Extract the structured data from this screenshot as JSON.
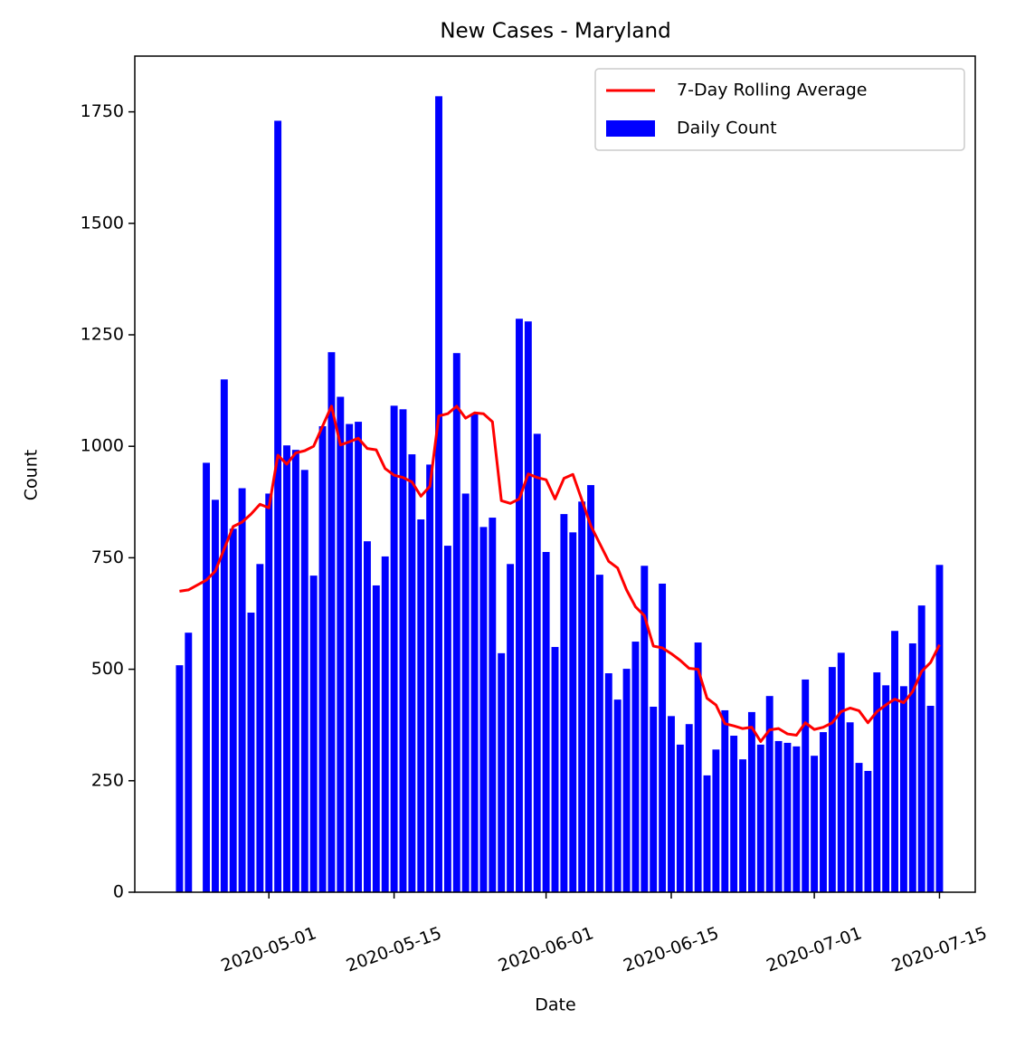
{
  "chart_data": {
    "type": "bar",
    "title": "New Cases - Maryland",
    "xlabel": "Date",
    "ylabel": "Count",
    "x": [
      "2020-04-21",
      "2020-04-22",
      "2020-04-24",
      "2020-04-25",
      "2020-04-26",
      "2020-04-27",
      "2020-04-28",
      "2020-04-29",
      "2020-04-30",
      "2020-05-01",
      "2020-05-02",
      "2020-05-03",
      "2020-05-04",
      "2020-05-05",
      "2020-05-06",
      "2020-05-07",
      "2020-05-08",
      "2020-05-09",
      "2020-05-10",
      "2020-05-11",
      "2020-05-12",
      "2020-05-13",
      "2020-05-14",
      "2020-05-15",
      "2020-05-16",
      "2020-05-17",
      "2020-05-18",
      "2020-05-19",
      "2020-05-20",
      "2020-05-21",
      "2020-05-22",
      "2020-05-23",
      "2020-05-24",
      "2020-05-25",
      "2020-05-26",
      "2020-05-27",
      "2020-05-28",
      "2020-05-29",
      "2020-05-30",
      "2020-05-31",
      "2020-06-01",
      "2020-06-02",
      "2020-06-03",
      "2020-06-04",
      "2020-06-05",
      "2020-06-06",
      "2020-06-07",
      "2020-06-08",
      "2020-06-09",
      "2020-06-10",
      "2020-06-11",
      "2020-06-12",
      "2020-06-13",
      "2020-06-14",
      "2020-06-15",
      "2020-06-16",
      "2020-06-17",
      "2020-06-18",
      "2020-06-19",
      "2020-06-20",
      "2020-06-21",
      "2020-06-22",
      "2020-06-23",
      "2020-06-24",
      "2020-06-25",
      "2020-06-26",
      "2020-06-27",
      "2020-06-28",
      "2020-06-29",
      "2020-06-30",
      "2020-07-01",
      "2020-07-02",
      "2020-07-03",
      "2020-07-04",
      "2020-07-05",
      "2020-07-06",
      "2020-07-07",
      "2020-07-08",
      "2020-07-09",
      "2020-07-10",
      "2020-07-11",
      "2020-07-12",
      "2020-07-13",
      "2020-07-14",
      "2020-07-15"
    ],
    "series": [
      {
        "name": "7-Day Rolling Average",
        "type": "line",
        "color": "#ff0000",
        "values": [
          675,
          678,
          700,
          720,
          770,
          820,
          830,
          848,
          870,
          862,
          980,
          960,
          985,
          990,
          1000,
          1045,
          1090,
          1003,
          1010,
          1018,
          995,
          992,
          950,
          935,
          930,
          920,
          888,
          910,
          1068,
          1073,
          1090,
          1063,
          1075,
          1073,
          1055,
          878,
          872,
          882,
          938,
          930,
          925,
          882,
          928,
          937,
          880,
          822,
          782,
          742,
          727,
          678,
          640,
          620,
          552,
          548,
          535,
          520,
          502,
          500,
          435,
          420,
          378,
          373,
          367,
          370,
          338,
          364,
          367,
          355,
          352,
          380,
          365,
          370,
          380,
          405,
          413,
          407,
          380,
          405,
          420,
          433,
          425,
          450,
          495,
          515,
          555
        ]
      },
      {
        "name": "Daily Count",
        "type": "bar",
        "color": "#0000ff",
        "values": [
          509,
          582,
          963,
          880,
          1150,
          815,
          906,
          627,
          736,
          894,
          1730,
          1002,
          992,
          947,
          710,
          1045,
          1211,
          1111,
          1050,
          1055,
          787,
          688,
          753,
          1091,
          1083,
          982,
          836,
          959,
          1785,
          777,
          1209,
          894,
          1073,
          819,
          840,
          536,
          736,
          1286,
          1280,
          1028,
          763,
          550,
          848,
          807,
          876,
          913,
          712,
          491,
          432,
          501,
          562,
          732,
          416,
          692,
          395,
          331,
          377,
          560,
          262,
          320,
          408,
          351,
          298,
          404,
          331,
          440,
          339,
          335,
          327,
          477,
          306,
          359,
          505,
          537,
          381,
          290,
          272,
          493,
          464,
          586,
          462,
          558,
          643,
          418,
          734
        ]
      }
    ],
    "xlim": [
      "2020-04-16",
      "2020-07-19"
    ],
    "xticks": [
      "2020-05-01",
      "2020-05-15",
      "2020-06-01",
      "2020-06-15",
      "2020-07-01",
      "2020-07-15"
    ],
    "ylim": [
      0,
      1875
    ],
    "yticks": [
      0,
      250,
      500,
      750,
      1000,
      1250,
      1500,
      1750
    ],
    "legend": "upper right",
    "grid": false
  }
}
